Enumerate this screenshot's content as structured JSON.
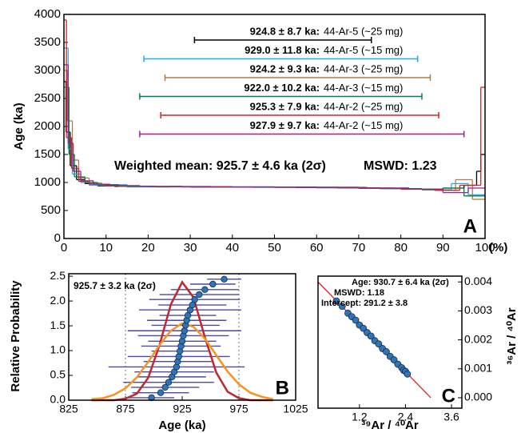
{
  "chart_data": [
    {
      "type": "age-spectrum",
      "x_label": "(%)",
      "y_label": "Age (ka)",
      "panel_label": "A",
      "xlim": [
        0,
        100
      ],
      "ylim": [
        0,
        4000
      ],
      "xticks": [
        0,
        10,
        20,
        30,
        40,
        50,
        60,
        70,
        80,
        90,
        100
      ],
      "yticks": [
        0,
        500,
        1000,
        1500,
        2000,
        2500,
        3000,
        3500,
        4000
      ],
      "series": [
        {
          "color": "#000000",
          "bins": [
            0,
            0.5,
            1.5,
            3,
            5,
            8,
            12,
            20,
            30,
            45,
            60,
            72,
            82,
            90,
            95,
            98,
            99,
            100
          ],
          "values": [
            2800,
            1900,
            1300,
            1050,
            980,
            940,
            930,
            925,
            920,
            920,
            910,
            900,
            880,
            900,
            950,
            1200,
            1500
          ]
        },
        {
          "color": "#29aae2",
          "bins": [
            0,
            1,
            2,
            4,
            6,
            10,
            15,
            25,
            35,
            50,
            65,
            78,
            85,
            92,
            96,
            100
          ],
          "values": [
            3400,
            1600,
            1150,
            1000,
            950,
            960,
            920,
            930,
            925,
            915,
            905,
            890,
            870,
            980,
            780
          ]
        },
        {
          "color": "#b07a4a",
          "bins": [
            0,
            0.8,
            2,
            3.5,
            6,
            9,
            14,
            22,
            35,
            50,
            65,
            80,
            88,
            93,
            97,
            100
          ],
          "values": [
            3000,
            2100,
            1400,
            1080,
            990,
            950,
            935,
            920,
            918,
            912,
            900,
            880,
            860,
            1050,
            700
          ]
        },
        {
          "color": "#00804a",
          "bins": [
            0,
            1.2,
            2.5,
            5,
            8,
            13,
            20,
            30,
            45,
            60,
            75,
            85,
            90,
            95,
            100
          ],
          "values": [
            2700,
            1500,
            1100,
            1000,
            960,
            930,
            925,
            920,
            915,
            905,
            890,
            870,
            900,
            760
          ]
        },
        {
          "color": "#d2232a",
          "bins": [
            0,
            0.6,
            1.8,
            3.5,
            6,
            10,
            18,
            28,
            40,
            55,
            70,
            80,
            88,
            94,
            99,
            100
          ],
          "values": [
            3900,
            1800,
            1250,
            1020,
            970,
            940,
            930,
            922,
            920,
            915,
            900,
            880,
            860,
            950,
            2700
          ]
        },
        {
          "color": "#92278f",
          "bins": [
            0,
            1,
            2.2,
            4,
            7,
            11,
            18,
            28,
            40,
            55,
            70,
            82,
            90,
            96,
            100
          ],
          "values": [
            3100,
            1700,
            1200,
            1030,
            970,
            945,
            930,
            925,
            920,
            910,
            895,
            880,
            820,
            900
          ]
        }
      ],
      "annotations": [
        {
          "age": "924.8 ± 8.7 ka:",
          "sample": "44-Ar-5 (~25 mg)",
          "color": "#000000",
          "range": [
            31,
            73
          ]
        },
        {
          "age": "929.0 ± 11.8 ka:",
          "sample": "44-Ar-5 (~15 mg)",
          "color": "#29aae2",
          "range": [
            19,
            84
          ]
        },
        {
          "age": "924.2 ± 9.3 ka:",
          "sample": "44-Ar-3 (~25 mg)",
          "color": "#b07a4a",
          "range": [
            24,
            87
          ]
        },
        {
          "age": "922.0 ± 10.2 ka:",
          "sample": "44-Ar-3 (~15 mg)",
          "color": "#00804a",
          "range": [
            18,
            85
          ]
        },
        {
          "age": "925.3 ± 7.9 ka:",
          "sample": "44-Ar-2 (~25 mg)",
          "color": "#d2232a",
          "range": [
            23,
            89
          ]
        },
        {
          "age": "927.9 ± 9.7 ka:",
          "sample": "44-Ar-2 (~15 mg)",
          "color": "#92278f",
          "range": [
            18,
            95
          ]
        }
      ],
      "weighted_mean": "Weighted mean: 925.7 ± 4.6 ka (2σ)",
      "mswd": "MSWD: 1.23"
    },
    {
      "type": "probability",
      "x_label": "Age (ka)",
      "y_label": "Relative Probability",
      "panel_label": "B",
      "text": "925.7 ± 3.2 ka (2σ)",
      "xlim": [
        825,
        1025
      ],
      "ylim": [
        0,
        2.55
      ],
      "xticks": [
        825,
        875,
        925,
        975,
        1025
      ],
      "yticks": [
        {
          "value": 0,
          "label": "0.0"
        },
        0.5,
        {
          "value": 1,
          "label": "1.0"
        },
        1.5,
        {
          "value": 2,
          "label": "2.0"
        },
        2.5
      ],
      "vlines": [
        875,
        975
      ],
      "curves": [
        {
          "color": "#c1272d",
          "x": [
            845,
            855,
            865,
            875,
            885,
            895,
            905,
            915,
            925,
            935,
            945,
            955,
            965,
            975,
            985,
            995,
            1005
          ],
          "values": [
            0,
            0,
            0,
            0.03,
            0.13,
            0.45,
            1.11,
            1.93,
            2.38,
            2.07,
            1.27,
            0.56,
            0.17,
            0.04,
            0,
            0,
            0
          ]
        },
        {
          "color": "#f7931e",
          "x": [
            845,
            855,
            865,
            875,
            885,
            895,
            905,
            915,
            925,
            935,
            945,
            955,
            965,
            975,
            985,
            995,
            1005
          ],
          "values": [
            0.02,
            0.04,
            0.11,
            0.24,
            0.46,
            0.77,
            1.11,
            1.4,
            1.55,
            1.48,
            1.24,
            0.91,
            0.58,
            0.32,
            0.15,
            0.07,
            0.02
          ]
        }
      ],
      "points": {
        "color": "#2e75b6",
        "bar_color": "#4b4a9c",
        "x": [
          898,
          906,
          910,
          913,
          916,
          918,
          920,
          921,
          922,
          923,
          924,
          925,
          926,
          927,
          928,
          929,
          930,
          932,
          934,
          936,
          940,
          945,
          952,
          962
        ],
        "values": [
          0.05,
          0.15,
          0.26,
          0.36,
          0.47,
          0.57,
          0.67,
          0.78,
          0.88,
          0.99,
          1.09,
          1.19,
          1.3,
          1.4,
          1.51,
          1.61,
          1.71,
          1.82,
          1.92,
          2.03,
          2.13,
          2.23,
          2.34,
          2.44
        ],
        "xerr": [
          20,
          25,
          30,
          40,
          30,
          35,
          60,
          30,
          45,
          25,
          35,
          30,
          40,
          50,
          30,
          35,
          25,
          45,
          30,
          40,
          35,
          30,
          20,
          15
        ]
      }
    },
    {
      "type": "isochron",
      "x_label": "³⁹Ar / ⁴⁰Ar",
      "y_label": "³⁶Ar / ⁴⁰Ar",
      "panel_label": "C",
      "lines": [
        "Age: 930.7 ± 6.4 ka (2σ)",
        "MSWD: 1.18",
        "Intercept: 291.2 ± 3.8"
      ],
      "xlim": [
        0.12,
        3.87
      ],
      "ylim": [
        -0.00036,
        0.0042
      ],
      "xticks": [
        1.2,
        2.4,
        3.6
      ],
      "yticks": [
        {
          "value": 0,
          "label": "0.000"
        },
        0.001,
        0.002,
        0.003,
        0.004
      ],
      "fit": {
        "color": "#e8202a",
        "x": [
          0.12,
          3.06
        ],
        "values": [
          0.004,
          0
        ]
      },
      "points": {
        "color": "#2e75b6",
        "x": [
          0.6,
          0.75,
          0.9,
          1.0,
          1.1,
          1.2,
          1.3,
          1.4,
          1.5,
          1.6,
          1.7,
          1.8,
          1.9,
          2.0,
          2.1,
          2.2,
          2.3,
          2.35,
          2.4,
          2.45
        ],
        "values": [
          0.00334,
          0.00316,
          0.00292,
          0.0028,
          0.00268,
          0.00251,
          0.0024,
          0.00225,
          0.00213,
          0.00197,
          0.00186,
          0.0017,
          0.00159,
          0.00143,
          0.00131,
          0.00116,
          0.00104,
          0.00095,
          0.00091,
          0.00082
        ]
      }
    }
  ]
}
